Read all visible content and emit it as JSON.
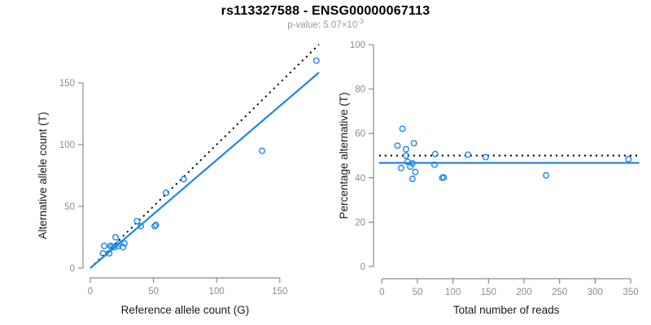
{
  "header": {
    "title": "rs113327588 - ENSG00000067113",
    "subtitle_prefix": "p-value: 5.07×10",
    "subtitle_exponent": "-3"
  },
  "colors": {
    "accent_blue": "#1C86EE",
    "line_black": "#000000",
    "axis_gray": "#8a8a8a",
    "tick_label_gray": "#8c8c8c",
    "axis_title_dark": "#1a1a1a"
  },
  "chart_data": [
    {
      "type": "scatter",
      "name": "allele-counts-scatter",
      "xlabel": "Reference allele count (G)",
      "ylabel": "Alternative allele count (T)",
      "xlim": [
        0,
        150
      ],
      "ylim": [
        0,
        150
      ],
      "xticks": [
        0,
        50,
        100,
        150
      ],
      "yticks": [
        0,
        50,
        100,
        150
      ],
      "grid": false,
      "points": [
        [
          10,
          12
        ],
        [
          11,
          18
        ],
        [
          15,
          12
        ],
        [
          16,
          18
        ],
        [
          17,
          17
        ],
        [
          19,
          17
        ],
        [
          20,
          25
        ],
        [
          22,
          18
        ],
        [
          23,
          20
        ],
        [
          26,
          17
        ],
        [
          27,
          20
        ],
        [
          37,
          38
        ],
        [
          40,
          34
        ],
        [
          51,
          34
        ],
        [
          52,
          35
        ],
        [
          60,
          61
        ],
        [
          74,
          72
        ],
        [
          136,
          95
        ],
        [
          179,
          168
        ]
      ],
      "lines": [
        {
          "slope": 1,
          "intercept": 0,
          "x_from": 0,
          "x_to": 181,
          "style": "dotted",
          "color": "#000000"
        },
        {
          "slope": 0.875,
          "intercept": 0,
          "x_from": 0,
          "x_to": 181,
          "style": "solid",
          "color": "#1C86EE"
        }
      ]
    },
    {
      "type": "scatter",
      "name": "percentage-vs-reads-scatter",
      "xlabel": "Total number of reads",
      "ylabel": "Percentage alternative (T)",
      "xlim": [
        0,
        350
      ],
      "ylim": [
        0,
        100
      ],
      "xticks": [
        0,
        50,
        100,
        150,
        200,
        250,
        300,
        350
      ],
      "yticks": [
        0,
        20,
        40,
        60,
        80,
        100
      ],
      "grid": false,
      "points": [
        [
          22,
          54.5
        ],
        [
          29,
          62.1
        ],
        [
          27,
          44.4
        ],
        [
          34,
          52.9
        ],
        [
          34,
          50
        ],
        [
          36,
          47.2
        ],
        [
          45,
          55.6
        ],
        [
          40,
          45
        ],
        [
          43,
          46.5
        ],
        [
          43,
          39.5
        ],
        [
          47,
          42.6
        ],
        [
          75,
          50.7
        ],
        [
          74,
          45.9
        ],
        [
          85,
          40
        ],
        [
          87,
          40.2
        ],
        [
          121,
          50.4
        ],
        [
          146,
          49.3
        ],
        [
          231,
          41.1
        ],
        [
          347,
          48.4
        ]
      ],
      "lines": [
        {
          "slope": 0,
          "intercept": 50,
          "x_from": -4,
          "x_to": 362,
          "style": "dotted",
          "color": "#000000"
        },
        {
          "slope": 0,
          "intercept": 46.7,
          "x_from": -4,
          "x_to": 362,
          "style": "solid",
          "color": "#1C86EE"
        }
      ]
    }
  ]
}
